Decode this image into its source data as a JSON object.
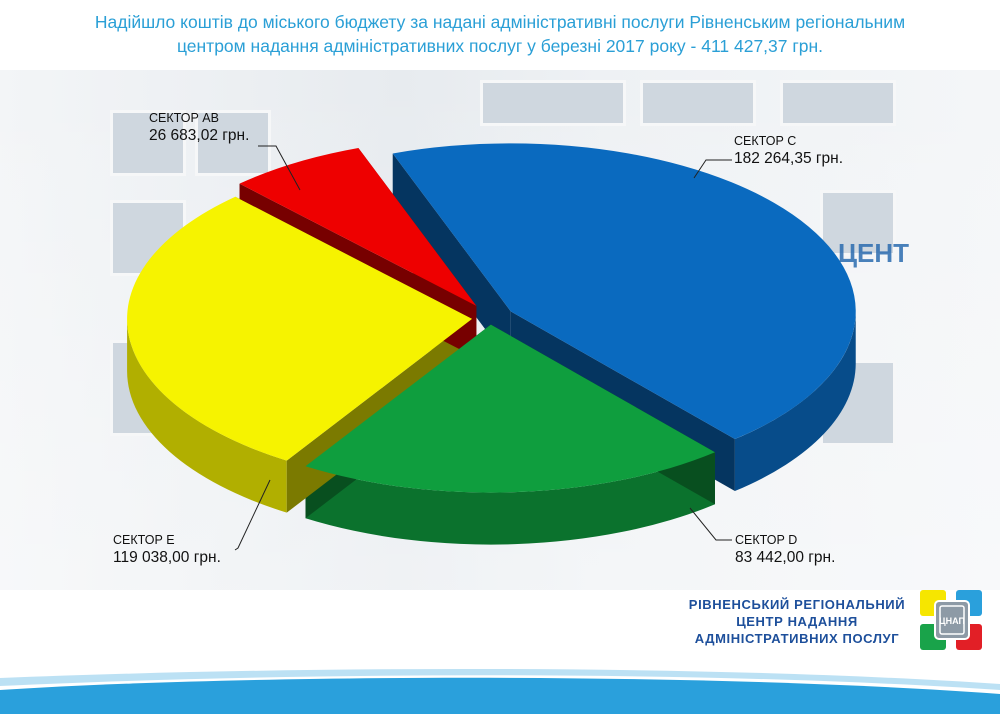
{
  "title_lines": [
    "Надійшло коштів до міського бюджету за надані адміністративні послуги Рівненським регіональним",
    "центром надання адміністративних послуг у березні 2017 року - 411 427,37 грн."
  ],
  "chart_data": {
    "type": "pie",
    "title": "Надійшло коштів до міського бюджету за надані адміністративні послуги Рівненським регіональним центром надання адміністративних послуг у березні 2017 року - 411 427,37 грн.",
    "total": 411427.37,
    "slices": [
      {
        "name": "СЕКТОР С",
        "value": 182264.35,
        "value_label": "182 264,35 грн.",
        "color": "#0a6abf"
      },
      {
        "name": "СЕКТОР D",
        "value": 83442.0,
        "value_label": "83 442,00 грн.",
        "color": "#0f9e3e"
      },
      {
        "name": "СЕКТОР Е",
        "value": 119038.0,
        "value_label": "119 038,00 грн.",
        "color": "#f6f300"
      },
      {
        "name": "СЕКТОР АВ",
        "value": 26683.02,
        "value_label": "26 683,02 грн.",
        "color": "#ee0000"
      }
    ]
  },
  "organization": {
    "lines": [
      "РІВНЕНСЬКИЙ РЕГІОНАЛЬНИЙ",
      "ЦЕНТР НАДАННЯ",
      "АДМІНІСТРАТИВНИХ ПОСЛУГ"
    ],
    "logo_text": "ЦНАП"
  },
  "background_text": "ЦЕНТ"
}
